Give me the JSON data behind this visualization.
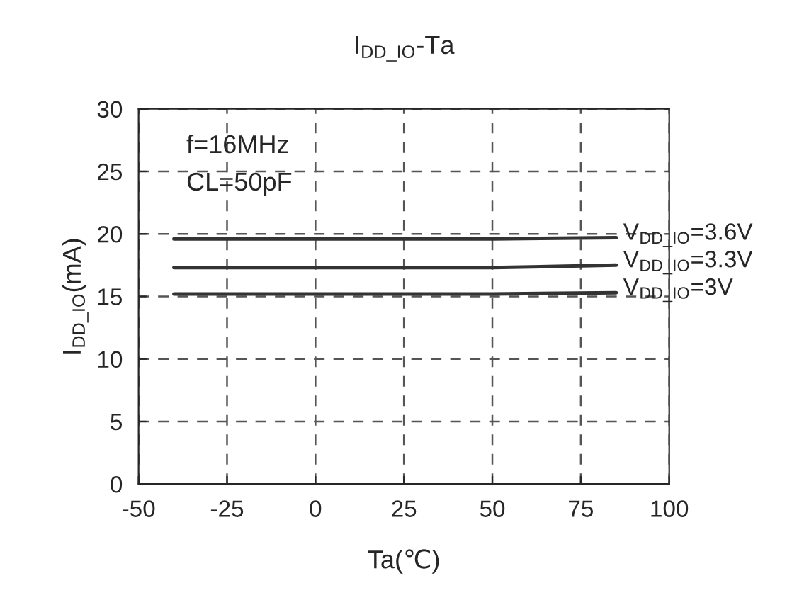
{
  "chart_data": {
    "type": "line",
    "title": "I$_{DD_IO}$-Ta",
    "xlabel": "Ta(℃)",
    "ylabel": "I$_{DD_IO}$(mA)",
    "annotations": [
      "f=16MHz",
      "CL=50pF"
    ],
    "x": [
      -40,
      25,
      50,
      85
    ],
    "series": [
      {
        "name": "V$_{DD_IO}$=3.6V",
        "color": "#333333",
        "values": [
          19.6,
          19.6,
          19.6,
          19.7
        ]
      },
      {
        "name": "V$_{DD_IO}$=3.3V",
        "color": "#333333",
        "values": [
          17.3,
          17.3,
          17.3,
          17.5
        ]
      },
      {
        "name": "V$_{DD_IO}$=3V",
        "color": "#333333",
        "values": [
          15.2,
          15.2,
          15.2,
          15.3
        ]
      }
    ],
    "xlim": [
      -50,
      100
    ],
    "xticks": [
      -50,
      -25,
      0,
      25,
      50,
      75,
      100
    ],
    "ylim": [
      0,
      30
    ],
    "yticks": [
      0,
      5,
      10,
      15,
      20,
      25,
      30
    ],
    "grid": true,
    "line_style": "solid",
    "marker": "none",
    "legend": false
  }
}
